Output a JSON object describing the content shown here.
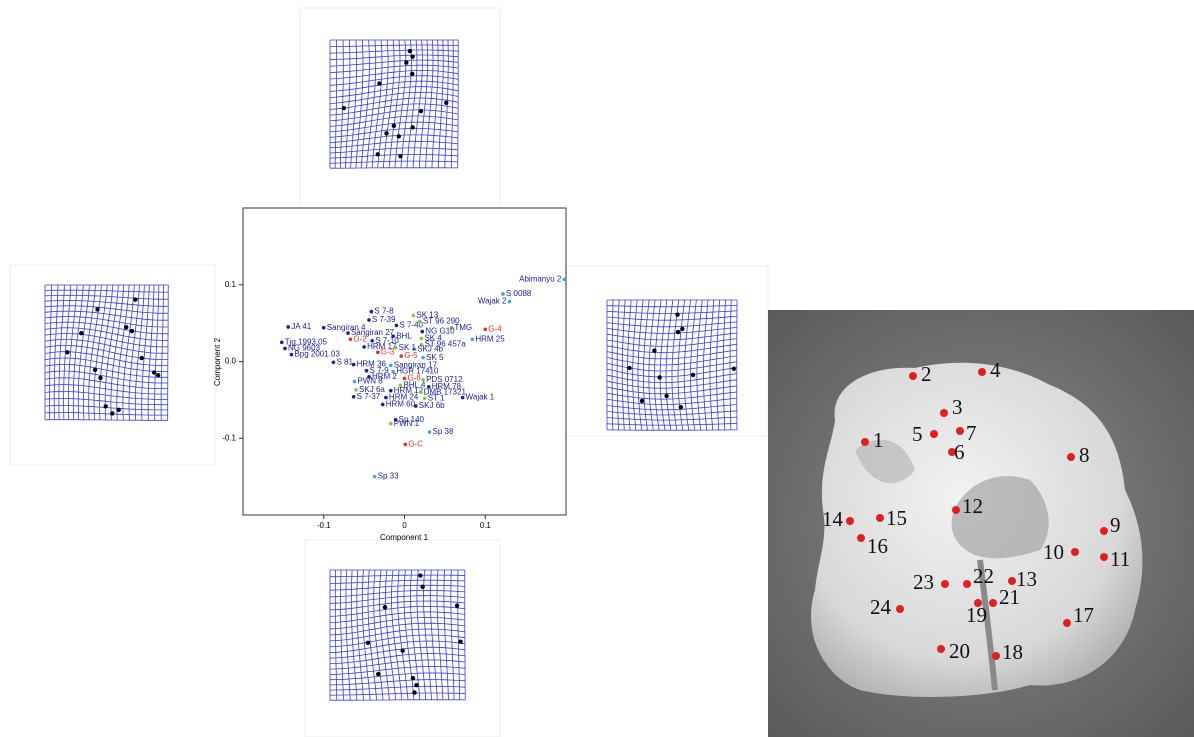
{
  "chart_data": {
    "type": "scatter",
    "x_label": "Component 1",
    "y_label": "Component 2",
    "xlim": [
      -0.2,
      0.2
    ],
    "ylim": [
      -0.2,
      0.2
    ],
    "xticks": [
      -0.1,
      0,
      0.1
    ],
    "yticks": [
      -0.1,
      {
        "value": 0,
        "label": "0.0"
      },
      0.1
    ],
    "labels": [
      "JA 41",
      "Tjg 1993.05",
      "NG 9603",
      "Bpg 2001.03",
      "HRM 17",
      "S 81",
      "Sangiran 4",
      "S 7-8",
      "G-2",
      "S 7-39",
      "S 7-40",
      "Sangiran 27",
      "BHL",
      "SK 13",
      "ST 96 290",
      "TMG",
      "NG G10",
      "G-4",
      "SK 4",
      "ST 96 457a",
      "HRM 25",
      "SKJ 4b",
      "SK 5",
      "S 7-10",
      "SK 1",
      "G-3",
      "HRM 36",
      "G-5",
      "Sangiran 17",
      "S 7-9",
      "HGR 17410",
      "HRM 2",
      "G-6",
      "PDS 0712",
      "PWN 8",
      "BHL 4",
      "HRM 78",
      "SKJ 6a",
      "HRM 12",
      "DMB 17321",
      "S 7-37",
      "HRM 24",
      "ST 1",
      "Wajak 1",
      "HRM 60",
      "SKJ 6b",
      "Sp 140",
      "PWN 1",
      "Sp 38",
      "G-C",
      "Sp 33",
      "Abimanyu 2",
      "S 0088",
      "Wajak 2"
    ],
    "x": [
      -0.144,
      -0.152,
      -0.148,
      -0.14,
      -0.05,
      -0.088,
      -0.1,
      -0.041,
      -0.067,
      -0.044,
      -0.01,
      -0.07,
      -0.014,
      0.011,
      0.019,
      0.058,
      0.022,
      0.1,
      0.021,
      0.021,
      0.084,
      0.012,
      0.023,
      -0.04,
      -0.011,
      -0.033,
      -0.063,
      -0.004,
      -0.017,
      -0.047,
      -0.014,
      -0.044,
      0,
      0.023,
      -0.062,
      -0.005,
      0.03,
      -0.06,
      -0.017,
      0.02,
      -0.063,
      -0.023,
      0.025,
      0.072,
      -0.027,
      0.014,
      -0.011,
      -0.017,
      0.031,
      0.001,
      -0.037,
      0.198,
      0.122,
      0.13
    ],
    "y": [
      0.045,
      0.025,
      0.017,
      0.009,
      0.019,
      -0.001,
      0.044,
      0.065,
      0.029,
      0.054,
      0.047,
      0.037,
      0.033,
      0.06,
      0.052,
      0.044,
      0.039,
      0.042,
      0.03,
      0.022,
      0.029,
      0.016,
      0.005,
      0.027,
      0.018,
      0.012,
      -0.004,
      0.007,
      -0.005,
      -0.012,
      -0.013,
      -0.02,
      -0.022,
      -0.024,
      -0.026,
      -0.031,
      -0.033,
      -0.037,
      -0.038,
      -0.04,
      -0.046,
      -0.047,
      -0.048,
      -0.047,
      -0.056,
      -0.058,
      -0.076,
      -0.081,
      -0.092,
      -0.108,
      -0.15,
      0.107,
      0.088,
      0.078
    ],
    "colors": [
      "#1c1c9a",
      "#1c1c9a",
      "#1c1c9a",
      "#1c1c9a",
      "#1c1c9a",
      "#1c1c9a",
      "#1c1c9a",
      "#1c1c9a",
      "#e0301e",
      "#1c1c9a",
      "#1c1c9a",
      "#1c1c9a",
      "#1c1c9a",
      "#7ccc3c",
      "#7ccc3c",
      "#7ccc3c",
      "#1c1c9a",
      "#e0301e",
      "#7ccc3c",
      "#7ccc3c",
      "#4aa0e0",
      "#4aa0e0",
      "#4aa0e0",
      "#1c1c9a",
      "#7ccc3c",
      "#e0301e",
      "#1c1c9a",
      "#e0301e",
      "#4aa0e0",
      "#1c1c9a",
      "#4aa0e0",
      "#1c1c9a",
      "#e0301e",
      "#7ccc3c",
      "#4aa0e0",
      "#7ccc3c",
      "#1c1c9a",
      "#7ccc3c",
      "#1c1c9a",
      "#7ccc3c",
      "#1c1c9a",
      "#1c1c9a",
      "#7ccc3c",
      "#1c1c9a",
      "#1c1c9a",
      "#1c1c9a",
      "#1c1c9a",
      "#7ccc3c",
      "#4aa0e0",
      "#e0301e",
      "#4aa0e0",
      "#4aa0e0",
      "#4aa0e0",
      "#4aa0e0"
    ]
  },
  "landmarks": {
    "labels": [
      "1",
      "2",
      "3",
      "4",
      "5",
      "6",
      "7",
      "8",
      "9",
      "10",
      "11",
      "12",
      "13",
      "14",
      "15",
      "16",
      "17",
      "18",
      "19",
      "20",
      "21",
      "22",
      "23",
      "24"
    ]
  }
}
